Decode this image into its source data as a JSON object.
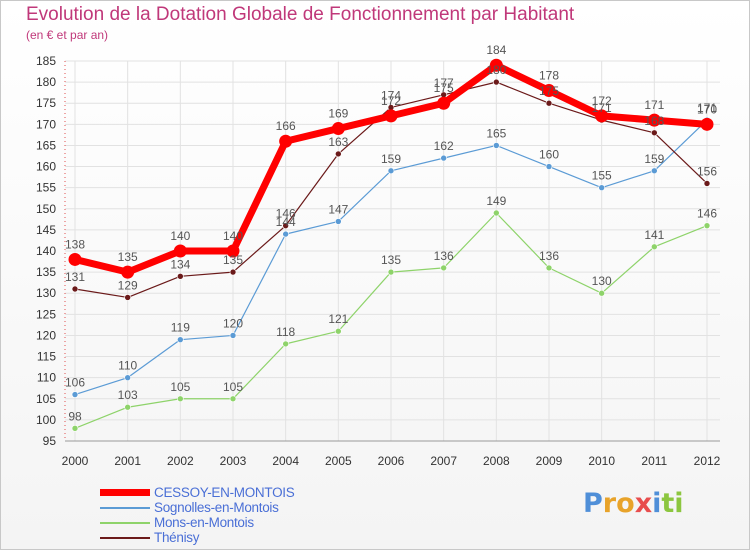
{
  "title": "Evolution de la Dotation Globale de Fonctionnement par Habitant",
  "subtitle": "(en € et par an)",
  "logo_text": "Proxiti",
  "chart_data": {
    "type": "line",
    "title": "Evolution de la Dotation Globale de Fonctionnement par Habitant",
    "subtitle": "(en € et par an)",
    "x": [
      "2000",
      "2001",
      "2002",
      "2003",
      "2004",
      "2005",
      "2006",
      "2007",
      "2008",
      "2009",
      "2010",
      "2011",
      "2012"
    ],
    "ylim": [
      95,
      185
    ],
    "yticks": [
      95,
      100,
      105,
      110,
      115,
      120,
      125,
      130,
      135,
      140,
      145,
      150,
      155,
      160,
      165,
      170,
      175,
      180,
      185
    ],
    "grid": true,
    "legend_position": "bottom-left",
    "series": [
      {
        "name": "CESSOY-EN-MONTOIS",
        "color": "#ff0000",
        "values": [
          138,
          135,
          140,
          140,
          166,
          169,
          172,
          175,
          184,
          178,
          172,
          171,
          170
        ]
      },
      {
        "name": "Sognolles-en-Montois",
        "color": "#5b9bd5",
        "values": [
          106,
          110,
          119,
          120,
          144,
          147,
          159,
          162,
          165,
          160,
          155,
          159,
          171
        ]
      },
      {
        "name": "Mons-en-Montois",
        "color": "#8ed36a",
        "values": [
          98,
          103,
          105,
          105,
          118,
          121,
          135,
          136,
          149,
          136,
          130,
          141,
          146
        ]
      },
      {
        "name": "Thénisy",
        "color": "#6b1a1a",
        "values": [
          131,
          129,
          134,
          135,
          146,
          163,
          174,
          177,
          180,
          175,
          171,
          168,
          156
        ]
      }
    ]
  }
}
